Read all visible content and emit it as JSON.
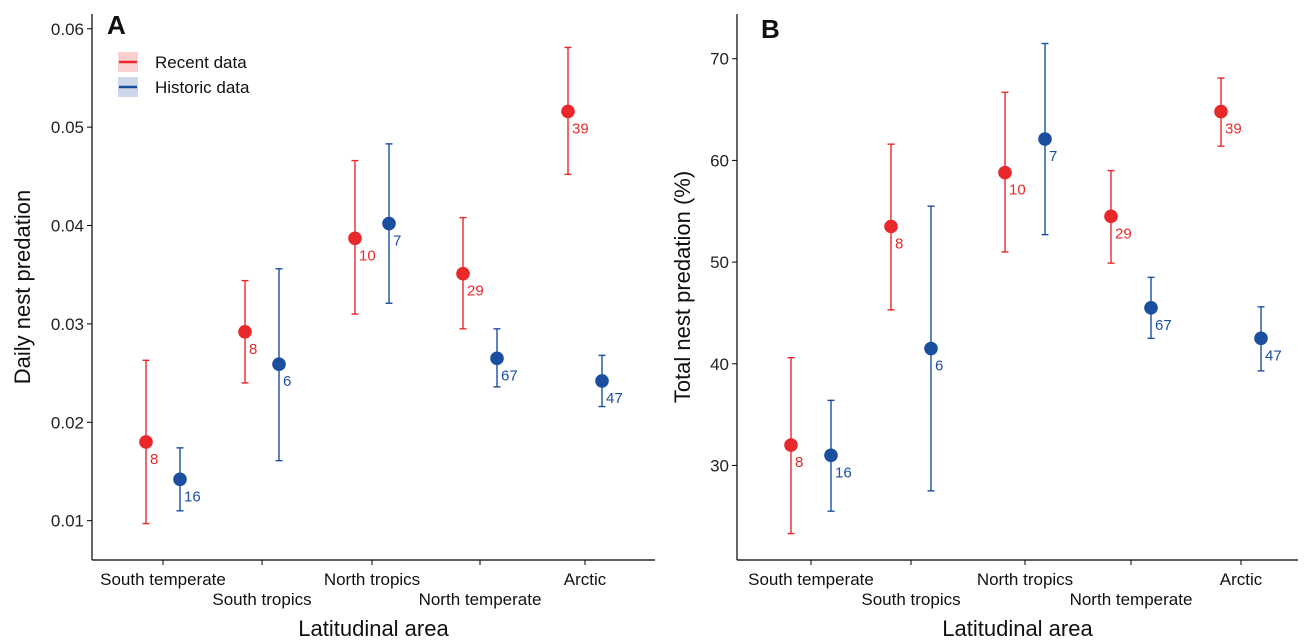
{
  "chart_data": [
    {
      "type": "scatter",
      "panel": "A",
      "xlabel": "Latitudinal area",
      "ylabel": "Daily nest predation",
      "ylim": [
        0.006,
        0.0615
      ],
      "yticks": [
        "0.01",
        "0.02",
        "0.03",
        "0.04",
        "0.05",
        "0.06"
      ],
      "categories": [
        "South temperate",
        "South tropics",
        "North tropics",
        "North temperate",
        "Arctic"
      ],
      "legend": {
        "placement": "top-left",
        "entries": [
          "Recent data",
          "Historic data"
        ]
      },
      "series": [
        {
          "name": "Recent data",
          "color": "#e8282b",
          "points": [
            {
              "category": "South temperate",
              "value": 0.018,
              "low": 0.0097,
              "high": 0.0263,
              "n": "8"
            },
            {
              "category": "South tropics",
              "value": 0.0292,
              "low": 0.024,
              "high": 0.0344,
              "n": "8"
            },
            {
              "category": "North tropics",
              "value": 0.0387,
              "low": 0.031,
              "high": 0.0466,
              "n": "10"
            },
            {
              "category": "North temperate",
              "value": 0.0351,
              "low": 0.0295,
              "high": 0.0408,
              "n": "29"
            },
            {
              "category": "Arctic",
              "value": 0.0516,
              "low": 0.0452,
              "high": 0.0581,
              "n": "39"
            }
          ]
        },
        {
          "name": "Historic data",
          "color": "#1a4fa0",
          "points": [
            {
              "category": "South temperate",
              "value": 0.0142,
              "low": 0.011,
              "high": 0.0174,
              "n": "16"
            },
            {
              "category": "South tropics",
              "value": 0.0259,
              "low": 0.0161,
              "high": 0.0356,
              "n": "6"
            },
            {
              "category": "North tropics",
              "value": 0.0402,
              "low": 0.0321,
              "high": 0.0483,
              "n": "7"
            },
            {
              "category": "North temperate",
              "value": 0.0265,
              "low": 0.0236,
              "high": 0.0295,
              "n": "67"
            },
            {
              "category": "Arctic",
              "value": 0.0242,
              "low": 0.0216,
              "high": 0.0268,
              "n": "47"
            }
          ]
        }
      ]
    },
    {
      "type": "scatter",
      "panel": "B",
      "xlabel": "Latitudinal area",
      "ylabel": "Total nest predation (%)",
      "ylim": [
        20.7,
        74.4
      ],
      "yticks": [
        "30",
        "40",
        "50",
        "60",
        "70"
      ],
      "categories": [
        "South temperate",
        "South tropics",
        "North tropics",
        "North temperate",
        "Arctic"
      ],
      "series": [
        {
          "name": "Recent data",
          "color": "#e8282b",
          "points": [
            {
              "category": "South temperate",
              "value": 32.0,
              "low": 23.3,
              "high": 40.6,
              "n": "8"
            },
            {
              "category": "South tropics",
              "value": 53.5,
              "low": 45.3,
              "high": 61.6,
              "n": "8"
            },
            {
              "category": "North tropics",
              "value": 58.8,
              "low": 51.0,
              "high": 66.7,
              "n": "10"
            },
            {
              "category": "North temperate",
              "value": 54.5,
              "low": 49.9,
              "high": 59.0,
              "n": "29"
            },
            {
              "category": "Arctic",
              "value": 64.8,
              "low": 61.4,
              "high": 68.1,
              "n": "39"
            }
          ]
        },
        {
          "name": "Historic data",
          "color": "#1a4fa0",
          "points": [
            {
              "category": "South temperate",
              "value": 31.0,
              "low": 25.5,
              "high": 36.4,
              "n": "16"
            },
            {
              "category": "South tropics",
              "value": 41.5,
              "low": 27.5,
              "high": 55.5,
              "n": "6"
            },
            {
              "category": "North tropics",
              "value": 62.1,
              "low": 52.7,
              "high": 71.5,
              "n": "7"
            },
            {
              "category": "North temperate",
              "value": 45.5,
              "low": 42.5,
              "high": 48.5,
              "n": "67"
            },
            {
              "category": "Arctic",
              "value": 42.5,
              "low": 39.3,
              "high": 45.6,
              "n": "47"
            }
          ]
        }
      ]
    }
  ]
}
